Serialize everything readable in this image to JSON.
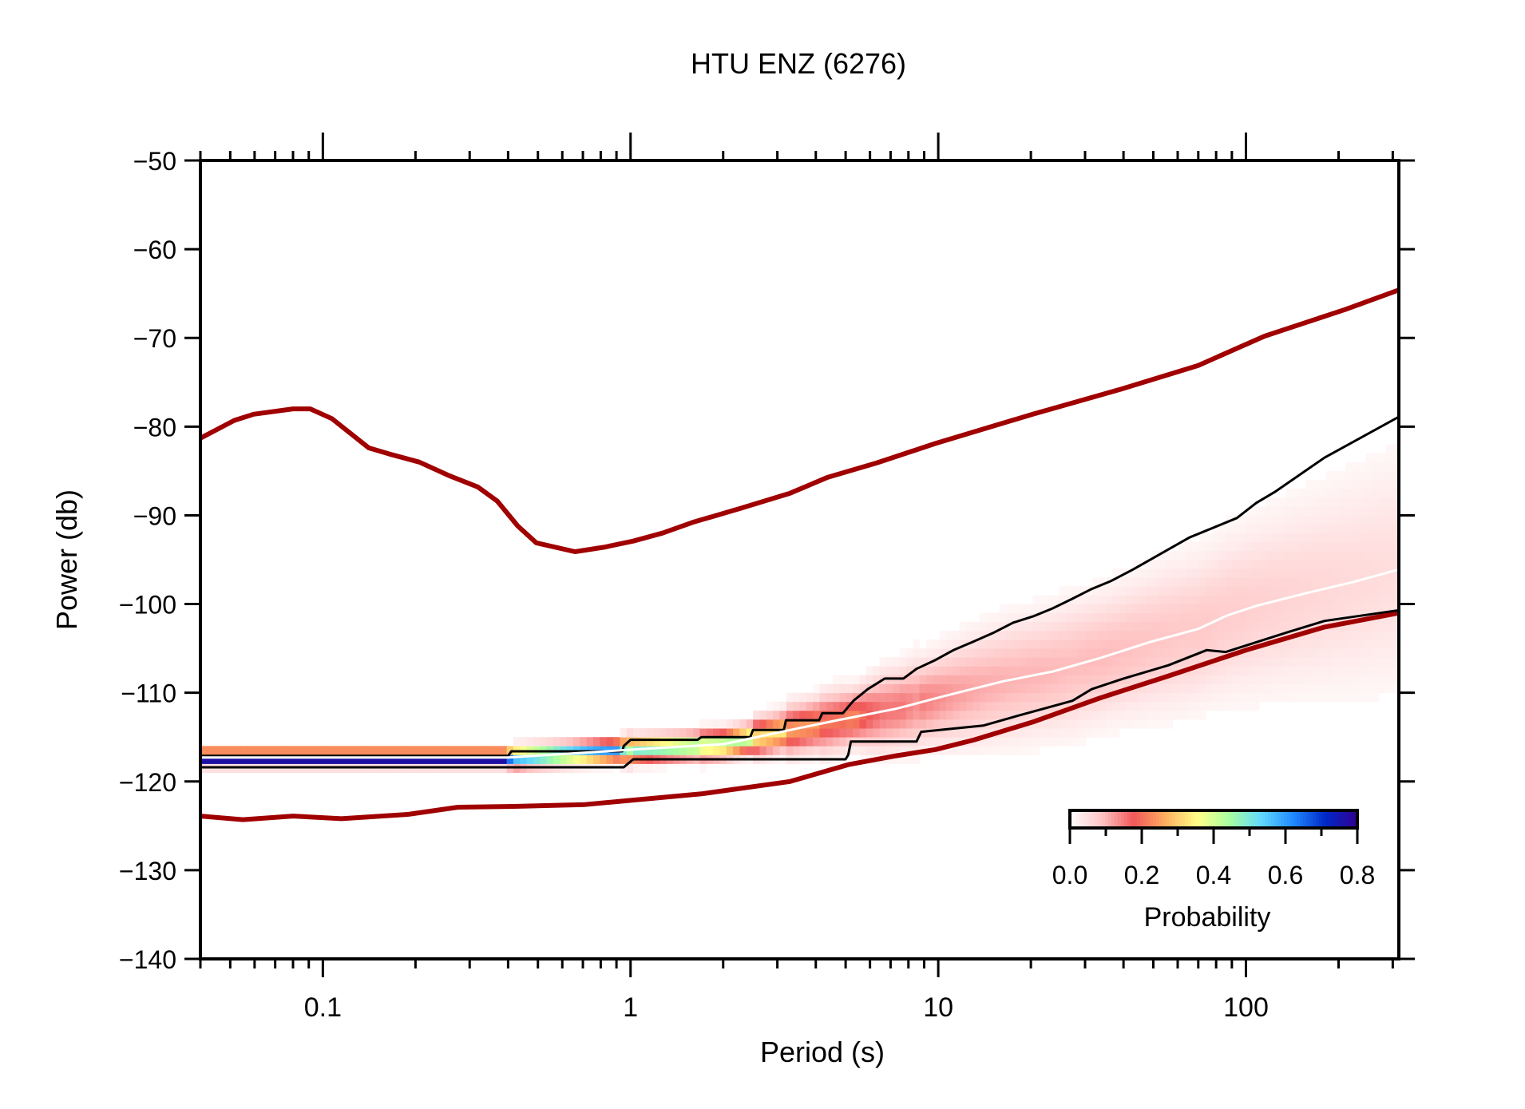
{
  "chart_data": {
    "type": "line",
    "title": "HTU ENZ (6276)",
    "xlabel": "Period (s)",
    "ylabel": "Power (db)",
    "xscale": "log",
    "xlim": [
      0.04,
      314
    ],
    "ylim": [
      -140,
      -50
    ],
    "grid": false,
    "x_ticks": [
      0.1,
      1,
      10,
      100
    ],
    "x_tick_labels": [
      "0.1",
      "1",
      "10",
      "100"
    ],
    "y_ticks": [
      -50,
      -60,
      -70,
      -80,
      -90,
      -100,
      -110,
      -120,
      -130,
      -140
    ],
    "y_tick_labels": [
      "−50",
      "−60",
      "−70",
      "−80",
      "−90",
      "−100",
      "−110",
      "−120",
      "−130",
      "−140"
    ],
    "colorbar": {
      "label": "Probability",
      "range": [
        0,
        0.8
      ],
      "tick_labels": [
        "0.0",
        "0.2",
        "0.4",
        "0.6",
        "0.8"
      ],
      "placement": "bottom-right",
      "colors": [
        "#ffffff",
        "#ffc4c4",
        "#f05858",
        "#ffb060",
        "#ffff88",
        "#a8ffa0",
        "#60d8ff",
        "#2088ff",
        "#0028c8",
        "#300090"
      ]
    },
    "series": [
      {
        "role": "upper-noise-model",
        "color": "#a00000",
        "x": [
          0.04,
          0.0515,
          0.0596,
          0.08,
          0.091,
          0.107,
          0.141,
          0.165,
          0.206,
          0.256,
          0.319,
          0.369,
          0.43,
          0.494,
          0.66,
          0.82,
          1.02,
          1.27,
          1.59,
          2.28,
          3.3,
          4.38,
          6.3,
          9.8,
          15.2,
          20.3,
          39,
          70,
          115,
          210,
          314
        ],
        "y": [
          -81.3,
          -79.3,
          -78.6,
          -78.0,
          -78.0,
          -79.1,
          -82.4,
          -83.1,
          -84.0,
          -85.5,
          -86.8,
          -88.4,
          -91.2,
          -93.1,
          -94.1,
          -93.6,
          -92.9,
          -92.0,
          -90.8,
          -89.2,
          -87.5,
          -85.7,
          -84.1,
          -81.9,
          -79.9,
          -78.6,
          -75.8,
          -73.1,
          -69.8,
          -66.8,
          -64.6
        ]
      },
      {
        "role": "lower-noise-model",
        "color": "#a00000",
        "x": [
          0.04,
          0.055,
          0.08,
          0.115,
          0.19,
          0.275,
          0.43,
          0.71,
          1.02,
          1.7,
          3.3,
          5.1,
          7.3,
          9.8,
          13.1,
          20.3,
          33.5,
          56,
          100,
          180,
          314
        ],
        "y": [
          -123.9,
          -124.3,
          -123.9,
          -124.2,
          -123.7,
          -122.9,
          -122.8,
          -122.6,
          -122.1,
          -121.4,
          -120.0,
          -118.1,
          -117.1,
          -116.4,
          -115.3,
          -113.3,
          -110.6,
          -108.1,
          -105.2,
          -102.6,
          -101.0
        ]
      },
      {
        "role": "upper-percentile",
        "color": "#000000",
        "x": [
          0.04,
          0.4,
          0.41,
          0.94,
          0.95,
          1.0,
          1.02,
          1.65,
          1.7,
          2.45,
          2.5,
          3.15,
          3.2,
          4.1,
          4.2,
          4.9,
          5.3,
          5.9,
          6.7,
          7.7,
          8.5,
          9.8,
          11.2,
          12.9,
          15.2,
          17.5,
          20.3,
          23.5,
          27.3,
          31.5,
          36.4,
          43,
          50.6,
          65.5,
          93.5,
          108,
          125,
          180,
          314
        ],
        "y": [
          -117.1,
          -117.1,
          -116.6,
          -116.6,
          -116.0,
          -115.3,
          -115.3,
          -115.3,
          -115.0,
          -115.0,
          -114.2,
          -114.2,
          -113.1,
          -113.1,
          -112.3,
          -112.3,
          -110.9,
          -109.6,
          -108.4,
          -108.4,
          -107.3,
          -106.3,
          -105.2,
          -104.3,
          -103.2,
          -102.1,
          -101.4,
          -100.5,
          -99.4,
          -98.3,
          -97.4,
          -96.1,
          -94.7,
          -92.5,
          -90.3,
          -88.6,
          -87.3,
          -83.5,
          -78.9
        ]
      },
      {
        "role": "lower-percentile",
        "color": "#000000",
        "x": [
          0.04,
          0.95,
          1.02,
          2.85,
          5.0,
          5.1,
          5.2,
          8.5,
          8.8,
          14,
          18.1,
          27.3,
          31.5,
          40,
          56,
          74.5,
          86,
          136,
          180,
          314
        ],
        "y": [
          -118.4,
          -118.4,
          -117.5,
          -117.5,
          -117.5,
          -117.0,
          -115.5,
          -115.5,
          -114.4,
          -113.7,
          -112.6,
          -110.9,
          -109.6,
          -108.4,
          -106.9,
          -105.2,
          -105.4,
          -103.2,
          -101.9,
          -100.7
        ]
      },
      {
        "role": "mode",
        "color": "#ffffff",
        "x": [
          0.04,
          0.4,
          1.02,
          2.0,
          3.3,
          4.7,
          7.3,
          10.4,
          16.3,
          23.6,
          33.5,
          48.6,
          70,
          86.7,
          108,
          156,
          224,
          314
        ],
        "y": [
          -117.3,
          -117.3,
          -116.4,
          -115.8,
          -114.2,
          -113.1,
          -111.8,
          -110.4,
          -108.7,
          -107.6,
          -106.1,
          -104.3,
          -102.8,
          -101.3,
          -100.2,
          -98.8,
          -97.5,
          -96.1
        ]
      }
    ]
  }
}
